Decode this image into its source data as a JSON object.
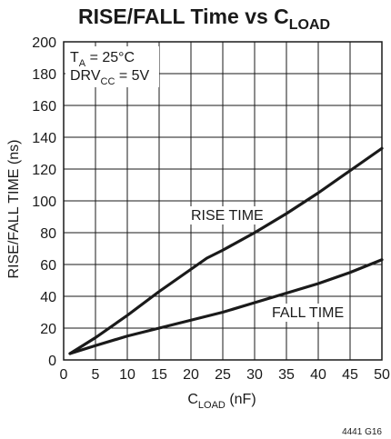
{
  "chart_data": {
    "type": "line",
    "title": {
      "main": "RISE/FALL Time vs C",
      "sub": "LOAD"
    },
    "xlabel": {
      "main": "C",
      "sub": "LOAD",
      "suffix": " (nF)"
    },
    "ylabel": "RISE/FALL TIME (ns)",
    "xlim": [
      0,
      50
    ],
    "ylim": [
      0,
      200
    ],
    "x_ticks": [
      0,
      5,
      10,
      15,
      20,
      25,
      30,
      35,
      40,
      45,
      50
    ],
    "y_ticks": [
      0,
      20,
      40,
      60,
      80,
      100,
      120,
      140,
      160,
      180,
      200
    ],
    "grid": true,
    "annotations": {
      "ta": {
        "main": "T",
        "sub": "A",
        "rest": " = 25°C"
      },
      "drv": {
        "main": "DRV",
        "sub": "CC",
        "rest": " = 5V"
      }
    },
    "series": [
      {
        "name": "RISE TIME",
        "x": [
          1,
          5,
          10,
          15,
          20,
          22.5,
          25,
          30,
          35,
          40,
          45,
          50
        ],
        "y": [
          4,
          14,
          28,
          43,
          57,
          64,
          69,
          80,
          92,
          105,
          119,
          133
        ]
      },
      {
        "name": "FALL TIME",
        "x": [
          1,
          5,
          10,
          15,
          20,
          25,
          30,
          35,
          40,
          45,
          50
        ],
        "y": [
          4,
          9,
          15,
          20,
          25,
          30,
          36,
          42,
          48,
          55,
          63
        ]
      }
    ],
    "figure_code": "4441 G16"
  },
  "colors": {
    "ink": "#1a1a1a",
    "background": "#ffffff"
  }
}
